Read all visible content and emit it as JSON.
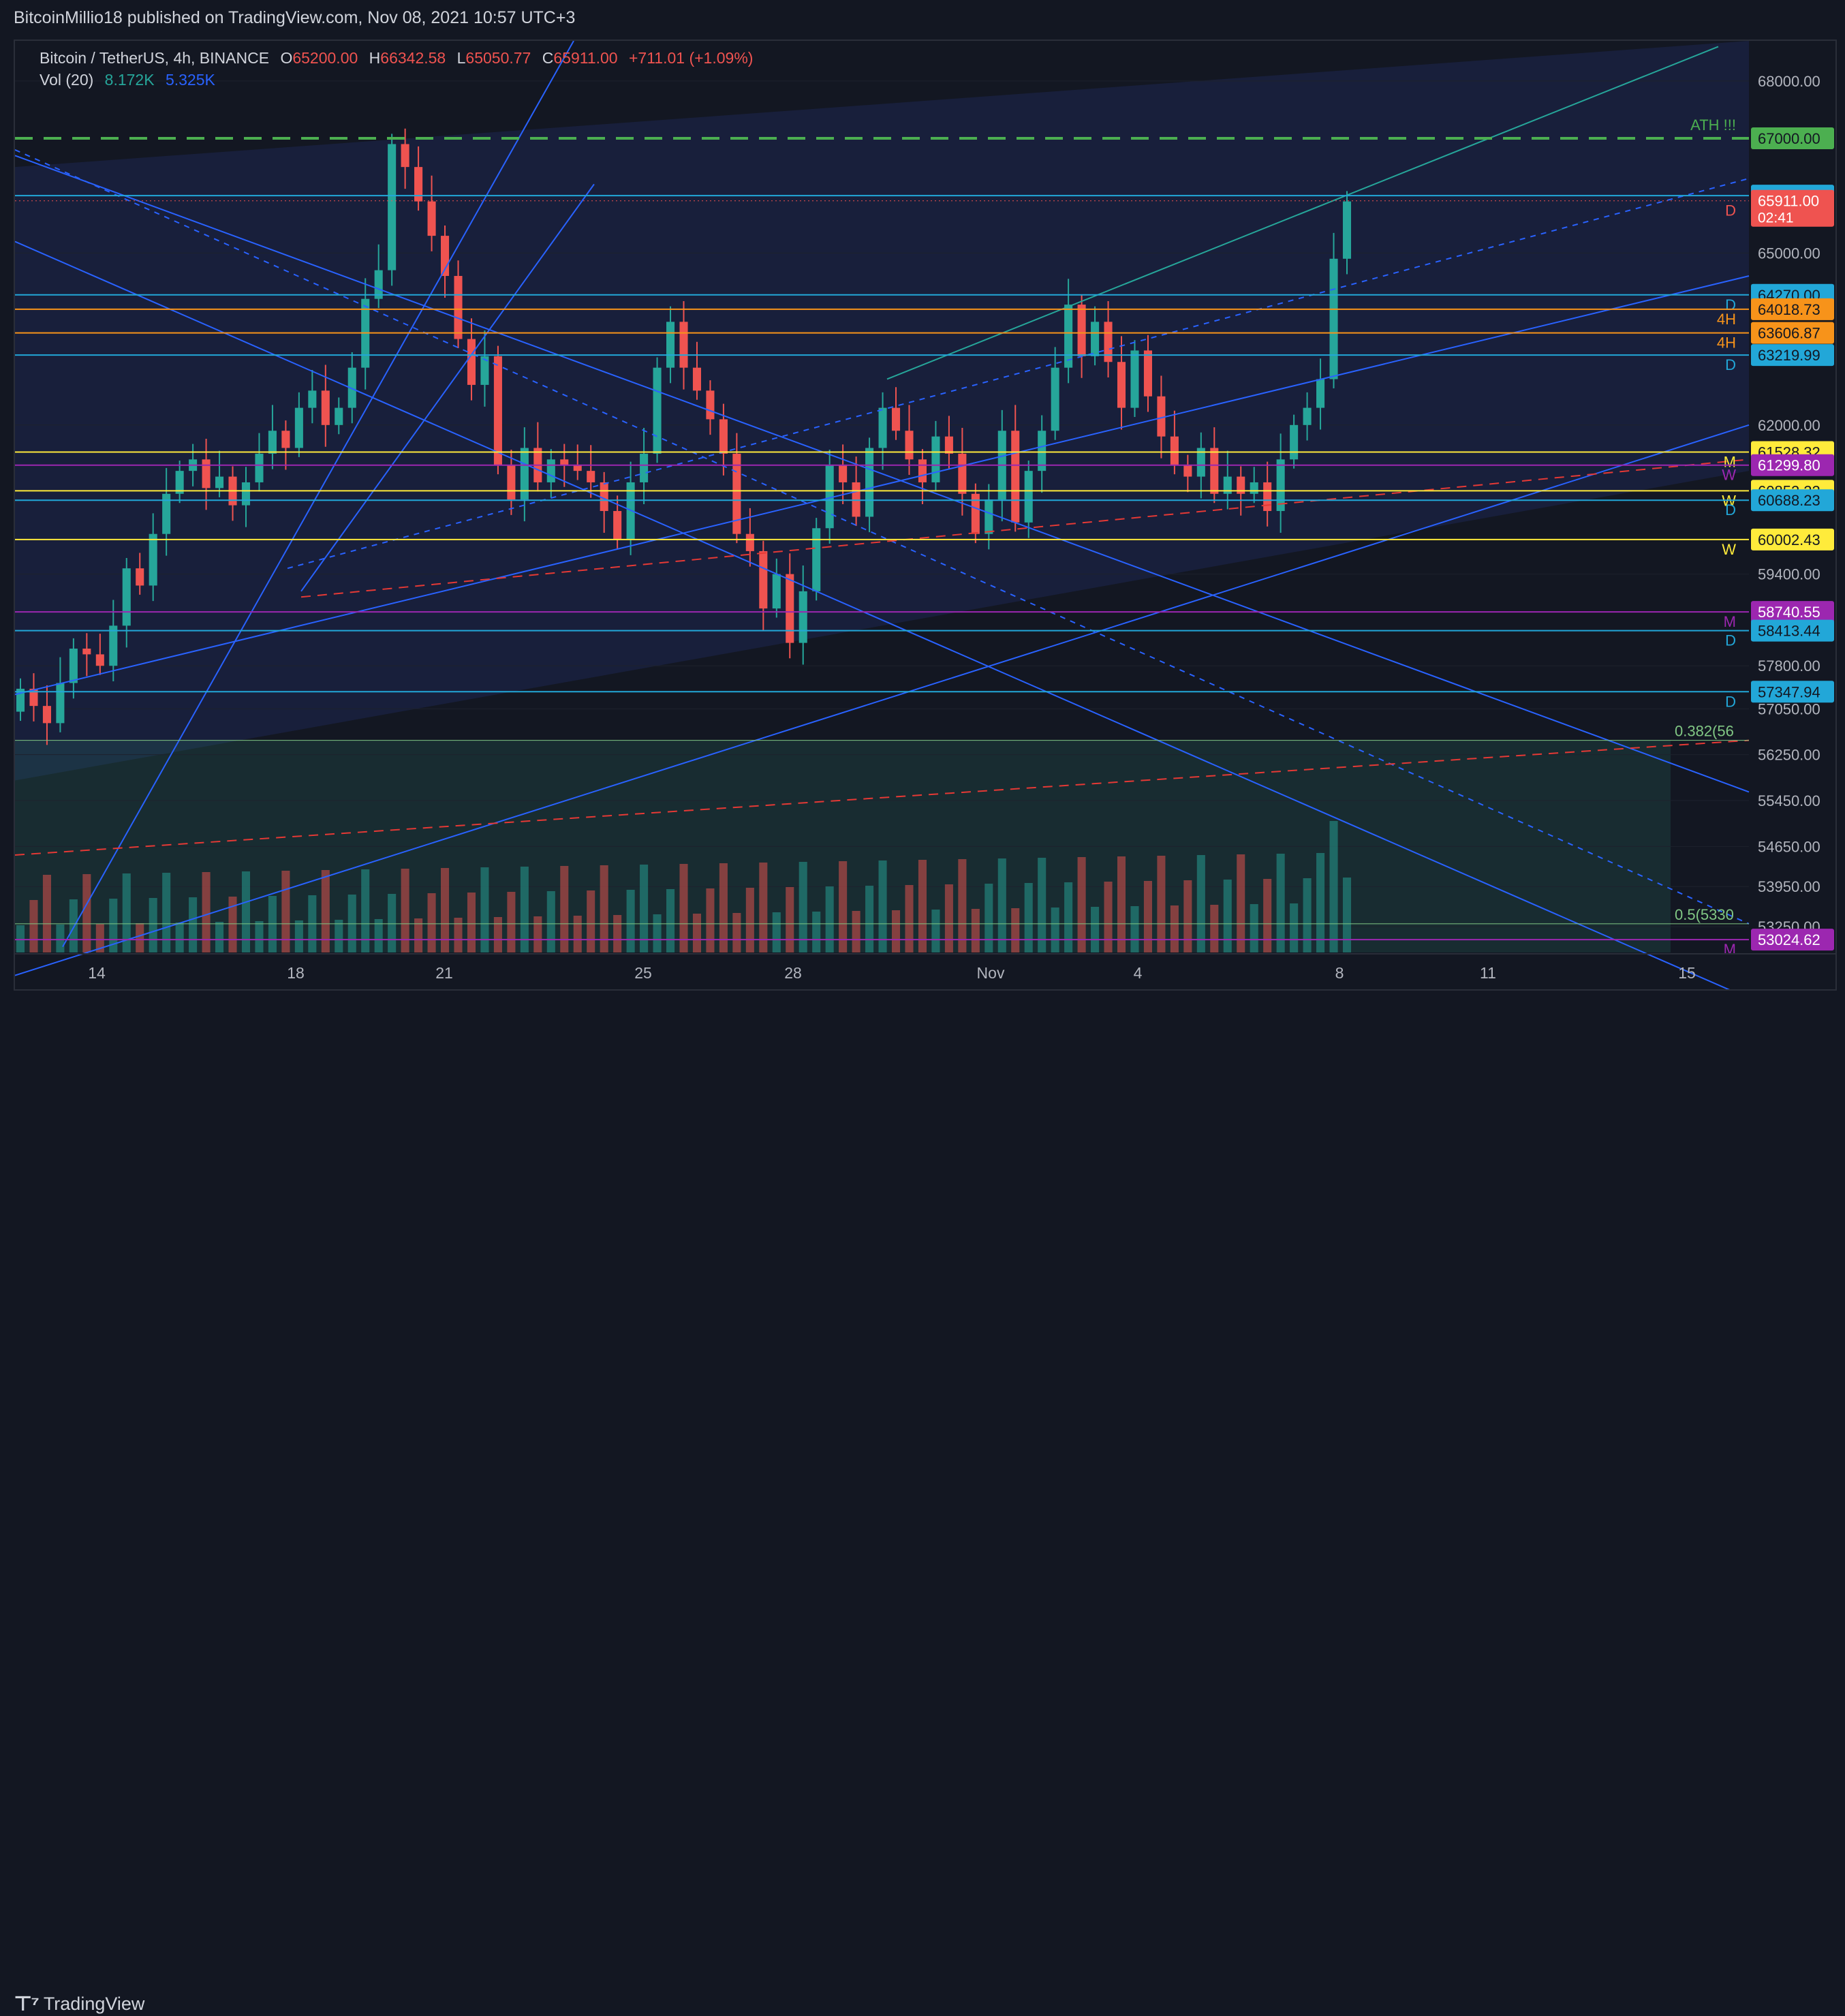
{
  "publish": {
    "author": "BitcoinMillio18",
    "text": "published on TradingView.com, Nov 08, 2021 10:57 UTC+3"
  },
  "legend": {
    "symbol": "Bitcoin / TetherUS, 4h, BINANCE",
    "open_label": "O",
    "open": "65200.00",
    "high_label": "H",
    "high": "66342.58",
    "low_label": "L",
    "low": "65050.77",
    "close_label": "C",
    "close": "65911.00",
    "change": "+711.01 (+1.09%)",
    "vol_label": "Vol (20)",
    "vol_value1": "8.172K",
    "vol_value2": "5.325K"
  },
  "footer": {
    "brand": "TradingView"
  },
  "colors": {
    "bg": "#131722",
    "up": "#26a69a",
    "down": "#ef5350",
    "grid": "#1e222d",
    "blue_line": "#2962ff",
    "cyan_line": "#22a7d8",
    "orange_line": "#f7931a",
    "yellow_line": "#ffeb3b",
    "purple_line": "#9c27b0",
    "green_line": "#089981"
  },
  "chart_data": {
    "type": "candlestick",
    "interval": "4h",
    "ylim": [
      52800,
      68700
    ],
    "y_ticks": [
      "68000.00",
      "65000.00",
      "62000.00",
      "59400.00",
      "57800.00",
      "57050.00",
      "56250.00",
      "55450.00",
      "54650.00",
      "53950.00",
      "53250.00"
    ],
    "x_ticks": [
      "14",
      "18",
      "21",
      "25",
      "28",
      "Nov",
      "4",
      "8",
      "11",
      "15"
    ],
    "price_badges": [
      {
        "label": "67000.00",
        "color": "#4caf50",
        "text_color": "#131722",
        "value": 67000,
        "tag": "ATH !!!"
      },
      {
        "label": "66001.41",
        "color": "#22a7d8",
        "text_color": "#131722",
        "value": 66001.41
      },
      {
        "label": "65911.00",
        "color": "#ef5350",
        "text_color": "#ffffff",
        "value": 65911,
        "tag": "D",
        "countdown": "02:41"
      },
      {
        "label": "64270.00",
        "color": "#22a7d8",
        "text_color": "#131722",
        "value": 64270,
        "tag": "D"
      },
      {
        "label": "64018.73",
        "color": "#f7931a",
        "text_color": "#131722",
        "value": 64018.73,
        "tag": "4H"
      },
      {
        "label": "63606.87",
        "color": "#f7931a",
        "text_color": "#131722",
        "value": 63606.87,
        "tag": "4H"
      },
      {
        "label": "63219.99",
        "color": "#22a7d8",
        "text_color": "#131722",
        "value": 63219.99,
        "tag": "D"
      },
      {
        "label": "61528.32",
        "color": "#ffeb3b",
        "text_color": "#131722",
        "value": 61528.32,
        "tag": "M"
      },
      {
        "label": "61299.80",
        "color": "#9c27b0",
        "text_color": "#ffffff",
        "value": 61299.8,
        "tag": "W"
      },
      {
        "label": "60852.22",
        "color": "#ffeb3b",
        "text_color": "#131722",
        "value": 60852.22,
        "tag": "W"
      },
      {
        "label": "60688.23",
        "color": "#22a7d8",
        "text_color": "#131722",
        "value": 60688.23,
        "tag": "D"
      },
      {
        "label": "60002.43",
        "color": "#ffeb3b",
        "text_color": "#131722",
        "value": 60002.43,
        "tag": "W"
      },
      {
        "label": "58740.55",
        "color": "#9c27b0",
        "text_color": "#ffffff",
        "value": 58740.55,
        "tag": "M"
      },
      {
        "label": "58413.44",
        "color": "#22a7d8",
        "text_color": "#131722",
        "value": 58413.44,
        "tag": "D"
      },
      {
        "label": "57347.94",
        "color": "#22a7d8",
        "text_color": "#131722",
        "value": 57347.94,
        "tag": "D"
      },
      {
        "label": "53024.62",
        "color": "#9c27b0",
        "text_color": "#ffffff",
        "value": 53024.62,
        "tag": "M"
      }
    ],
    "fib_labels": [
      {
        "text": "0.382(56",
        "value": 56500
      },
      {
        "text": "0.5(5330",
        "value": 53300
      }
    ],
    "candles_close": [
      57400,
      57100,
      56800,
      57500,
      58100,
      58000,
      57800,
      58500,
      59500,
      59200,
      60100,
      60800,
      61200,
      61400,
      60900,
      61100,
      60600,
      61000,
      61500,
      61900,
      61600,
      62300,
      62600,
      62000,
      62300,
      63000,
      64200,
      64700,
      66900,
      66500,
      65900,
      65300,
      64600,
      63500,
      62700,
      63200,
      61300,
      60700,
      61600,
      61000,
      61400,
      61300,
      61200,
      61000,
      60500,
      60000,
      61000,
      61500,
      63000,
      63800,
      63000,
      62600,
      62100,
      61500,
      60100,
      59800,
      58800,
      59400,
      58200,
      59100,
      60200,
      61300,
      61000,
      60400,
      61600,
      62300,
      61900,
      61400,
      61000,
      61800,
      61500,
      60800,
      60100,
      60700,
      61900,
      60300,
      61200,
      61900,
      63000,
      64100,
      63200,
      63800,
      63100,
      62300,
      63300,
      62500,
      61800,
      61300,
      61100,
      61600,
      60800,
      61100,
      60800,
      61000,
      60500,
      61400,
      62000,
      62300,
      62800,
      64900,
      65900
    ],
    "volume_note": "Vol (20) histogram at bottom"
  }
}
